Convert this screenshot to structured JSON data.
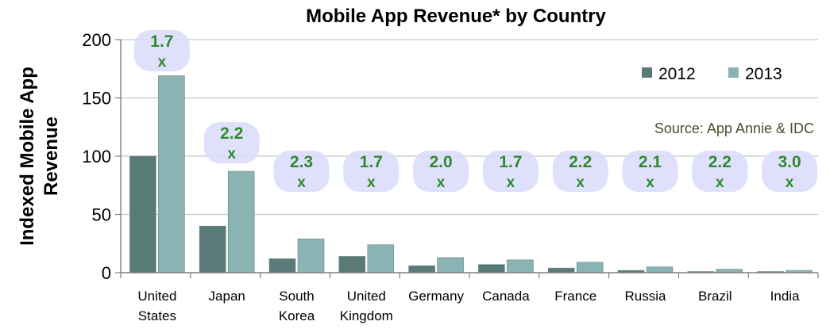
{
  "chart_data": {
    "type": "bar",
    "title": "Mobile App Revenue* by Country",
    "ylabel": "Indexed Mobile App Revenue",
    "ylabel_lines": [
      "Indexed Mobile App",
      "Revenue"
    ],
    "xlabel": "",
    "ylim": [
      0,
      200
    ],
    "yticks": [
      0,
      50,
      100,
      150,
      200
    ],
    "grid": true,
    "legend_position": "top-right",
    "categories": [
      [
        "United",
        "States"
      ],
      [
        "Japan"
      ],
      [
        "South",
        "Korea"
      ],
      [
        "United",
        "Kingdom"
      ],
      [
        "Germany"
      ],
      [
        "Canada"
      ],
      [
        "France"
      ],
      [
        "Russia"
      ],
      [
        "Brazil"
      ],
      [
        "India"
      ]
    ],
    "series": [
      {
        "name": "2012",
        "color": "#5a7a78",
        "values": [
          100,
          40,
          12,
          14,
          6,
          7,
          4,
          2,
          1,
          1
        ]
      },
      {
        "name": "2013",
        "color": "#8ab3b3",
        "values": [
          169,
          87,
          29,
          24,
          13,
          11,
          9,
          5,
          3,
          2
        ]
      }
    ],
    "growth_labels": [
      {
        "value": "1.7",
        "suffix": "x"
      },
      {
        "value": "2.2",
        "suffix": "x"
      },
      {
        "value": "2.3",
        "suffix": "x"
      },
      {
        "value": "1.7",
        "suffix": "x"
      },
      {
        "value": "2.0",
        "suffix": "x"
      },
      {
        "value": "1.7",
        "suffix": "x"
      },
      {
        "value": "2.2",
        "suffix": "x"
      },
      {
        "value": "2.1",
        "suffix": "x"
      },
      {
        "value": "2.2",
        "suffix": "x"
      },
      {
        "value": "3.0",
        "suffix": "x"
      }
    ],
    "bubble_color": "#d9dcfb",
    "source": "Source: App Annie & IDC"
  }
}
